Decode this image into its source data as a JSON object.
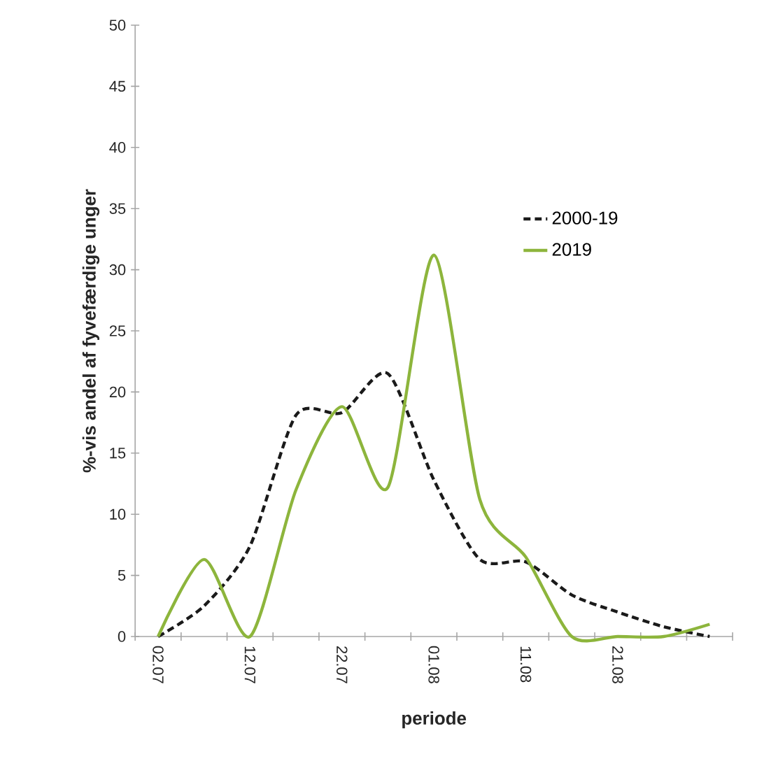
{
  "chart_data": {
    "type": "line",
    "xlabel": "periode",
    "ylabel": "%-vis andel af fyvefærdige unger",
    "categories": [
      "02.07",
      null,
      "12.07",
      null,
      "22.07",
      null,
      "01.08",
      null,
      "11.08",
      null,
      "21.08",
      null,
      null
    ],
    "series": [
      {
        "name": "2000-19",
        "color": "#1a1a1a",
        "line_style": "dashed",
        "values": [
          0,
          2.5,
          7.4,
          18.1,
          18.3,
          21.5,
          12.8,
          6.3,
          6.1,
          3.4,
          2,
          0.8,
          0
        ]
      },
      {
        "name": "2019",
        "color": "#8db53c",
        "line_style": "solid",
        "values": [
          0,
          6.3,
          0,
          12,
          18.8,
          12.2,
          31.2,
          11.2,
          6.5,
          0,
          0,
          0,
          1
        ]
      }
    ],
    "ylim": [
      0,
      50
    ],
    "yticks": [
      0,
      5,
      10,
      15,
      20,
      25,
      30,
      35,
      40,
      45,
      50
    ],
    "legend": "right",
    "marker": "none"
  }
}
